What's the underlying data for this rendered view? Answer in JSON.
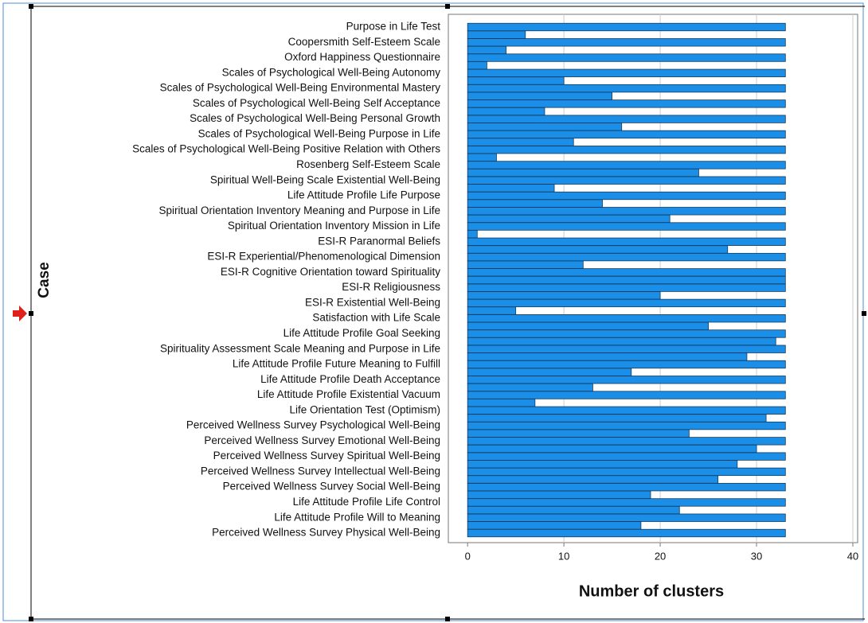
{
  "chart_data": {
    "type": "icicle",
    "x_label": "Number of clusters",
    "y_label": "Case",
    "categories": [
      "Purpose in Life Test",
      "Coopersmith Self-Esteem Scale",
      "Oxford Happiness Questionnaire",
      "Scales of Psychological Well-Being Autonomy",
      "Scales of Psychological Well-Being Environmental Mastery",
      "Scales of Psychological Well-Being Self Acceptance",
      "Scales of Psychological Well-Being Personal Growth",
      "Scales of Psychological Well-Being Purpose in Life",
      "Scales of Psychological Well-Being Positive Relation with Others",
      "Rosenberg Self-Esteem Scale",
      "Spiritual Well-Being Scale Existential Well-Being",
      "Life Attitude Profile Life Purpose",
      "Spiritual Orientation Inventory Meaning and Purpose in Life",
      "Spiritual Orientation Inventory Mission in Life",
      "ESI-R Paranormal Beliefs",
      "ESI-R Experiential/Phenomenological Dimension",
      "ESI-R Cognitive Orientation toward Spirituality",
      "ESI-R Religiousness",
      "ESI-R Existential Well-Being",
      "Satisfaction with Life Scale",
      "Life Attitude Profile Goal Seeking",
      "Spirituality Assessment Scale Meaning and Purpose in Life",
      "Life Attitude Profile Future Meaning to Fulfill",
      "Life Attitude Profile Death Acceptance",
      "Life Attitude Profile Existential Vacuum",
      "Life Orientation Test (Optimism)",
      "Perceived Wellness Survey Psychological Well-Being",
      "Perceived Wellness Survey Emotional Well-Being",
      "Perceived Wellness Survey Spiritual Well-Being",
      "Perceived Wellness Survey Intellectual Well-Being",
      "Perceived Wellness Survey Social Well-Being",
      "Life Attitude Profile Life Control",
      "Life Attitude Profile Will to Meaning",
      "Perceived Wellness Survey Physical Well-Being"
    ],
    "values": [
      33,
      33,
      33,
      33,
      33,
      33,
      33,
      33,
      33,
      33,
      33,
      33,
      33,
      33,
      33,
      33,
      33,
      33,
      33,
      33,
      33,
      33,
      33,
      33,
      33,
      33,
      33,
      33,
      33,
      33,
      33,
      33,
      33,
      33
    ],
    "join_values": [
      6,
      4,
      2,
      10,
      15,
      8,
      16,
      11,
      3,
      24,
      9,
      14,
      21,
      1,
      27,
      12,
      33,
      20,
      5,
      25,
      32,
      29,
      17,
      13,
      7,
      31,
      23,
      30,
      28,
      26,
      19,
      22,
      18
    ],
    "color": "#1b8fe8",
    "xlim": [
      -2,
      40.5
    ],
    "xticks": [
      0,
      10,
      20,
      30,
      40
    ],
    "grid": true
  }
}
